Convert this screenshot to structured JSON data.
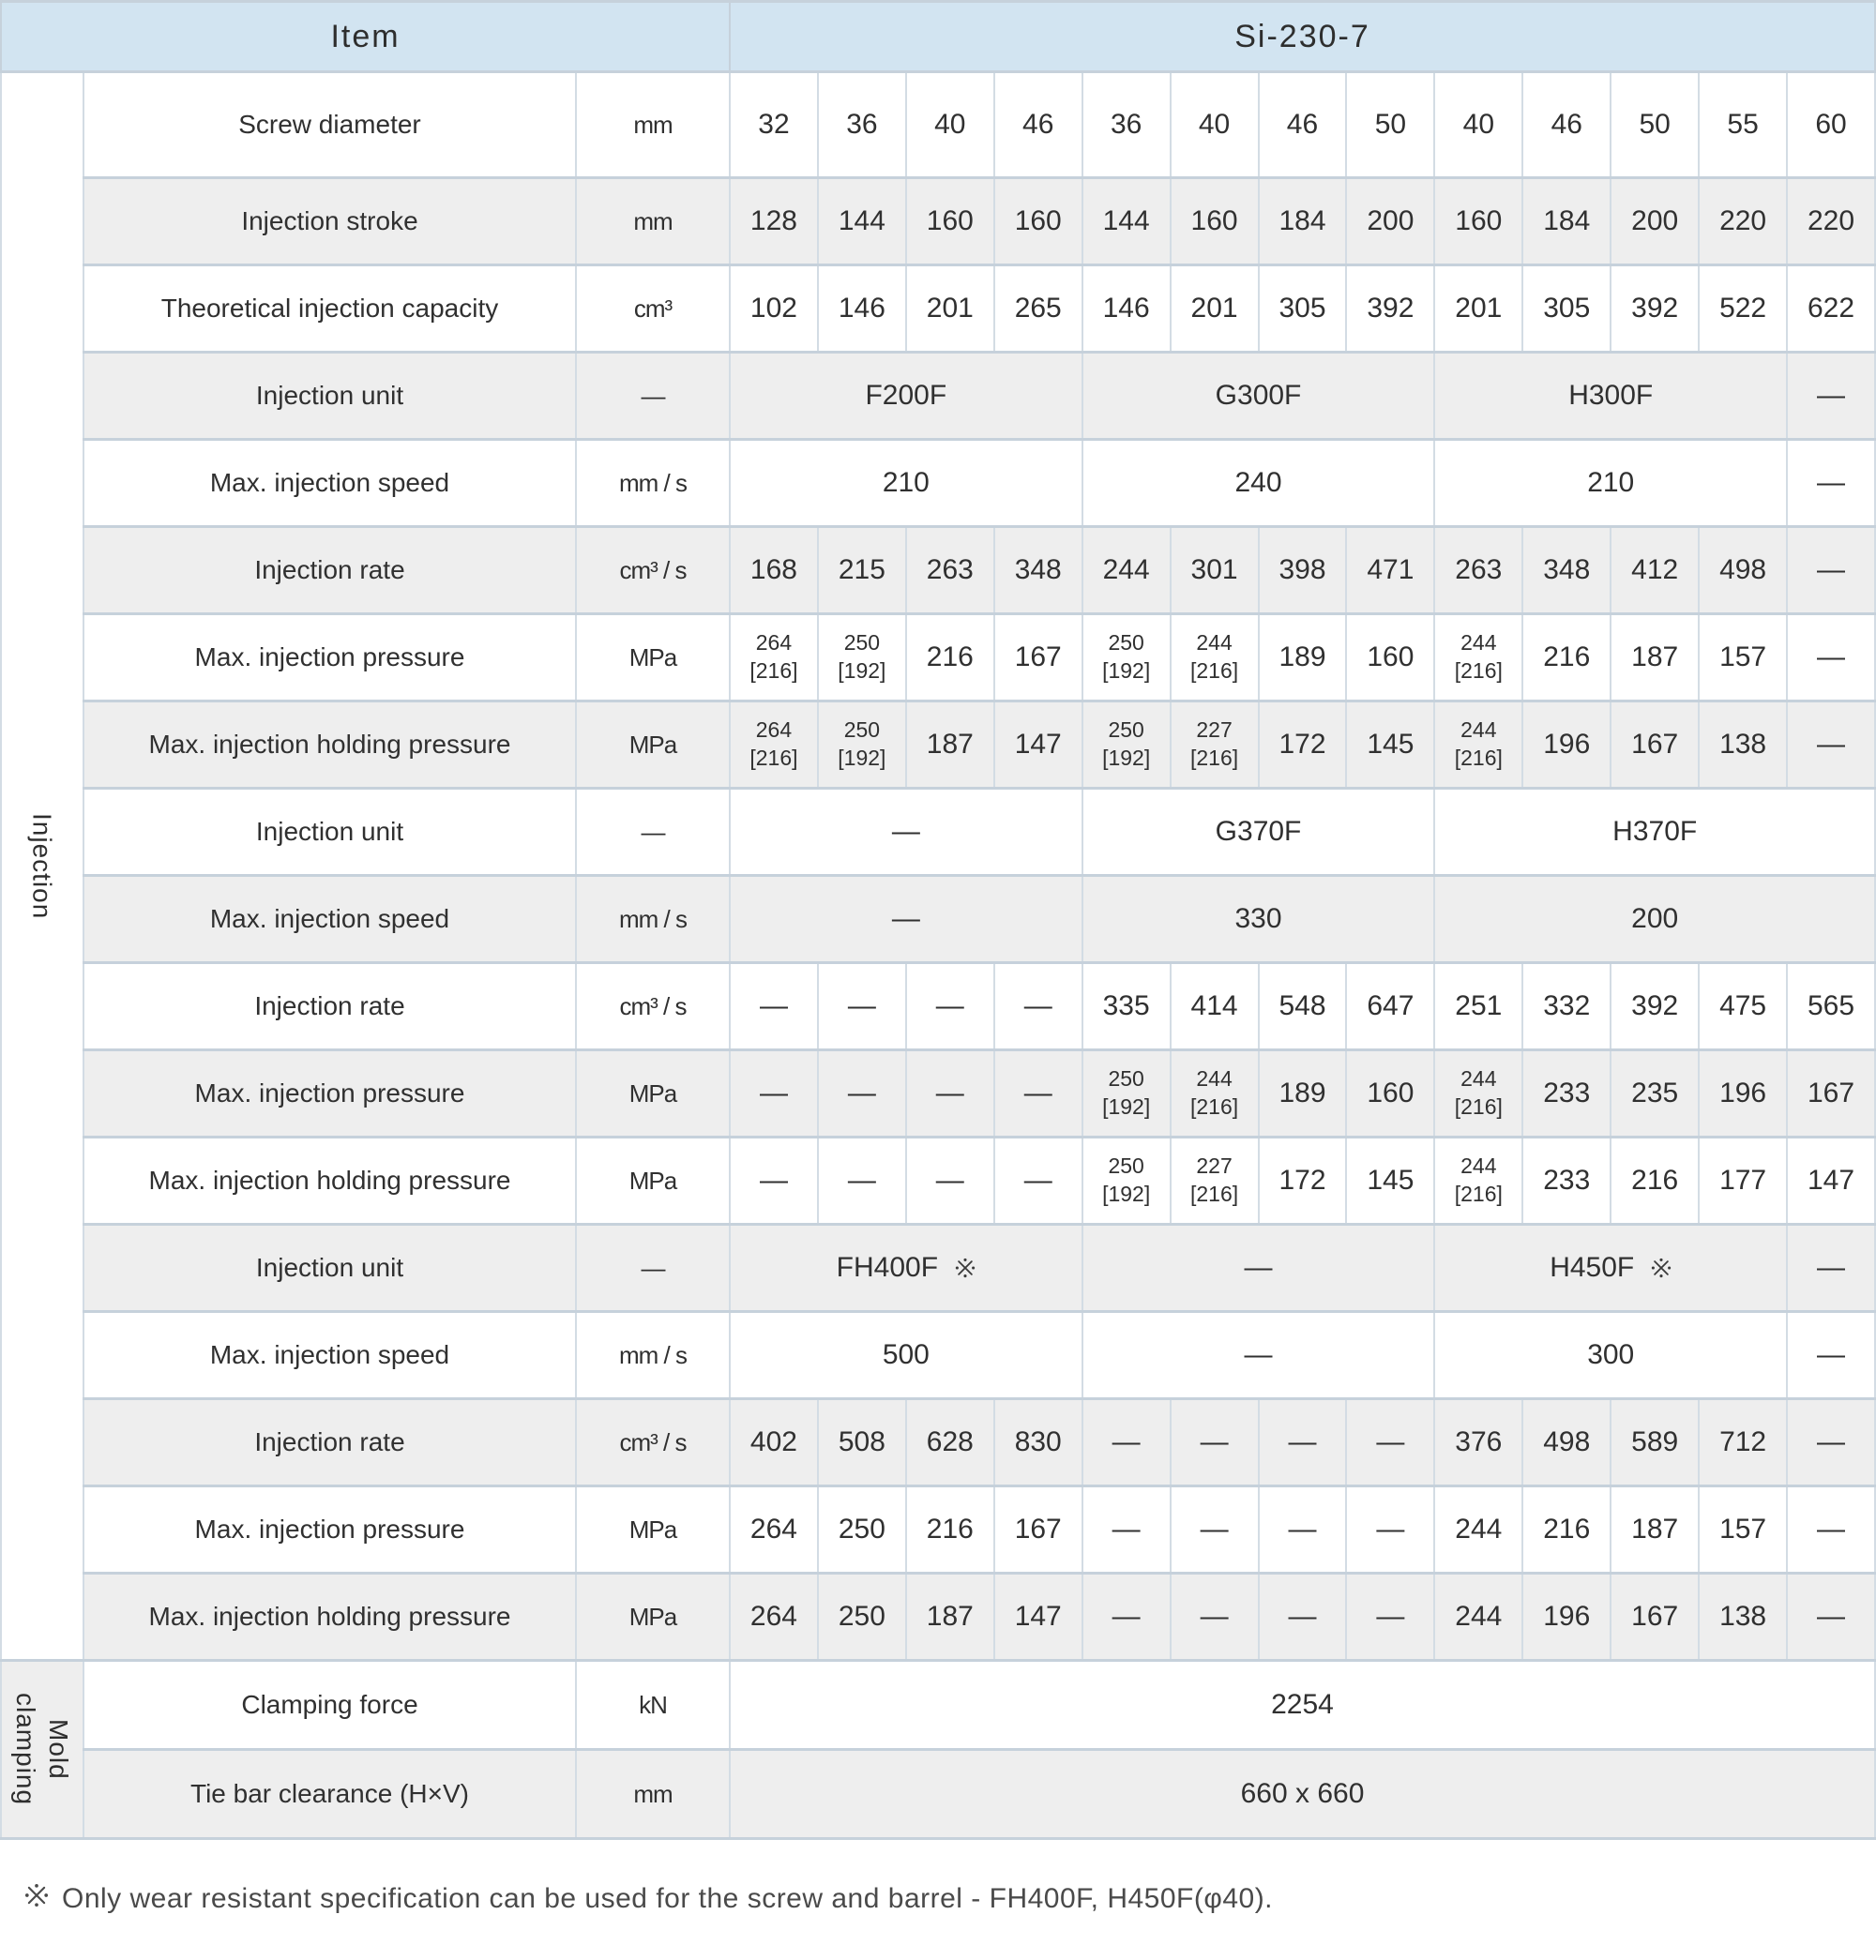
{
  "header": {
    "item_label": "Item",
    "model": "Si-230-7"
  },
  "note_symbol": "※",
  "footnote": "Only wear resistant specification can be used for the screw and barrel - FH400F, H450F(φ40).",
  "colors": {
    "header_bg": "#d2e4f1",
    "row_alt_bg": "#eeeeee",
    "border": "#c6d1db",
    "text": "#303030"
  },
  "sections": [
    {
      "name": "Injection",
      "rows": [
        {
          "label": "Screw diameter",
          "unit": "mm",
          "shade": false,
          "cells": [
            "32",
            "36",
            "40",
            "46",
            "36",
            "40",
            "46",
            "50",
            "40",
            "46",
            "50",
            "55",
            "60"
          ]
        },
        {
          "label": "Injection stroke",
          "unit": "mm",
          "shade": true,
          "cells": [
            "128",
            "144",
            "160",
            "160",
            "144",
            "160",
            "184",
            "200",
            "160",
            "184",
            "200",
            "220",
            "220"
          ]
        },
        {
          "label": "Theoretical injection capacity",
          "unit": "cm³",
          "shade": false,
          "cells": [
            "102",
            "146",
            "201",
            "265",
            "146",
            "201",
            "305",
            "392",
            "201",
            "305",
            "392",
            "522",
            "622"
          ]
        },
        {
          "label": "Injection unit",
          "unit": "—",
          "shade": true,
          "cells": [
            {
              "t": "F200F",
              "span": 4
            },
            {
              "t": "G300F",
              "span": 4
            },
            {
              "t": "H300F",
              "span": 4
            },
            "—"
          ]
        },
        {
          "label": "Max. injection speed",
          "unit": "mm / s",
          "shade": false,
          "cells": [
            {
              "t": "210",
              "span": 4
            },
            {
              "t": "240",
              "span": 4
            },
            {
              "t": "210",
              "span": 4
            },
            "—"
          ]
        },
        {
          "label": "Injection rate",
          "unit": "cm³ / s",
          "shade": true,
          "cells": [
            "168",
            "215",
            "263",
            "348",
            "244",
            "301",
            "398",
            "471",
            "263",
            "348",
            "412",
            "498",
            "—"
          ]
        },
        {
          "label": "Max. injection pressure",
          "unit": "MPa",
          "shade": false,
          "cells": [
            "264\n[216]",
            "250\n[192]",
            "216",
            "167",
            "250\n[192]",
            "244\n[216]",
            "189",
            "160",
            "244\n[216]",
            "216",
            "187",
            "157",
            "—"
          ]
        },
        {
          "label": "Max. injection holding pressure",
          "unit": "MPa",
          "shade": true,
          "cells": [
            "264\n[216]",
            "250\n[192]",
            "187",
            "147",
            "250\n[192]",
            "227\n[216]",
            "172",
            "145",
            "244\n[216]",
            "196",
            "167",
            "138",
            "—"
          ]
        },
        {
          "label": "Injection unit",
          "unit": "—",
          "shade": false,
          "cells": [
            {
              "t": "—",
              "span": 4
            },
            {
              "t": "G370F",
              "span": 4
            },
            {
              "t": "H370F",
              "span": 5
            }
          ]
        },
        {
          "label": "Max. injection speed",
          "unit": "mm / s",
          "shade": true,
          "cells": [
            {
              "t": "—",
              "span": 4
            },
            {
              "t": "330",
              "span": 4
            },
            {
              "t": "200",
              "span": 5
            }
          ]
        },
        {
          "label": "Injection rate",
          "unit": "cm³ / s",
          "shade": false,
          "cells": [
            "—",
            "—",
            "—",
            "—",
            "335",
            "414",
            "548",
            "647",
            "251",
            "332",
            "392",
            "475",
            "565"
          ]
        },
        {
          "label": "Max. injection pressure",
          "unit": "MPa",
          "shade": true,
          "cells": [
            "—",
            "—",
            "—",
            "—",
            "250\n[192]",
            "244\n[216]",
            "189",
            "160",
            "244\n[216]",
            "233",
            "235",
            "196",
            "167"
          ]
        },
        {
          "label": "Max. injection holding pressure",
          "unit": "MPa",
          "shade": false,
          "cells": [
            "—",
            "—",
            "—",
            "—",
            "250\n[192]",
            "227\n[216]",
            "172",
            "145",
            "244\n[216]",
            "233",
            "216",
            "177",
            "147"
          ]
        },
        {
          "label": "Injection unit",
          "unit": "—",
          "shade": true,
          "cells": [
            {
              "t": "FH400F",
              "span": 4,
              "note": true
            },
            {
              "t": "—",
              "span": 4
            },
            {
              "t": "H450F",
              "span": 4,
              "note": true
            },
            "—"
          ]
        },
        {
          "label": "Max. injection speed",
          "unit": "mm / s",
          "shade": false,
          "cells": [
            {
              "t": "500",
              "span": 4
            },
            {
              "t": "—",
              "span": 4
            },
            {
              "t": "300",
              "span": 4
            },
            "—"
          ]
        },
        {
          "label": "Injection rate",
          "unit": "cm³ / s",
          "shade": true,
          "cells": [
            "402",
            "508",
            "628",
            "830",
            "—",
            "—",
            "—",
            "—",
            "376",
            "498",
            "589",
            "712",
            "—"
          ]
        },
        {
          "label": "Max. injection pressure",
          "unit": "MPa",
          "shade": false,
          "cells": [
            "264",
            "250",
            "216",
            "167",
            "—",
            "—",
            "—",
            "—",
            "244",
            "216",
            "187",
            "157",
            "—"
          ]
        },
        {
          "label": "Max. injection holding pressure",
          "unit": "MPa",
          "shade": true,
          "cells": [
            "264",
            "250",
            "187",
            "147",
            "—",
            "—",
            "—",
            "—",
            "244",
            "196",
            "167",
            "138",
            "—"
          ]
        }
      ]
    },
    {
      "name": "Mold clamping",
      "rows": [
        {
          "label": "Clamping force",
          "unit": "kN",
          "shade": false,
          "cells": [
            {
              "t": "2254",
              "span": 13
            }
          ]
        },
        {
          "label": "Tie bar clearance (H×V)",
          "unit": "mm",
          "shade": true,
          "cells": [
            {
              "t": "660 x 660",
              "span": 13
            }
          ]
        }
      ]
    }
  ]
}
